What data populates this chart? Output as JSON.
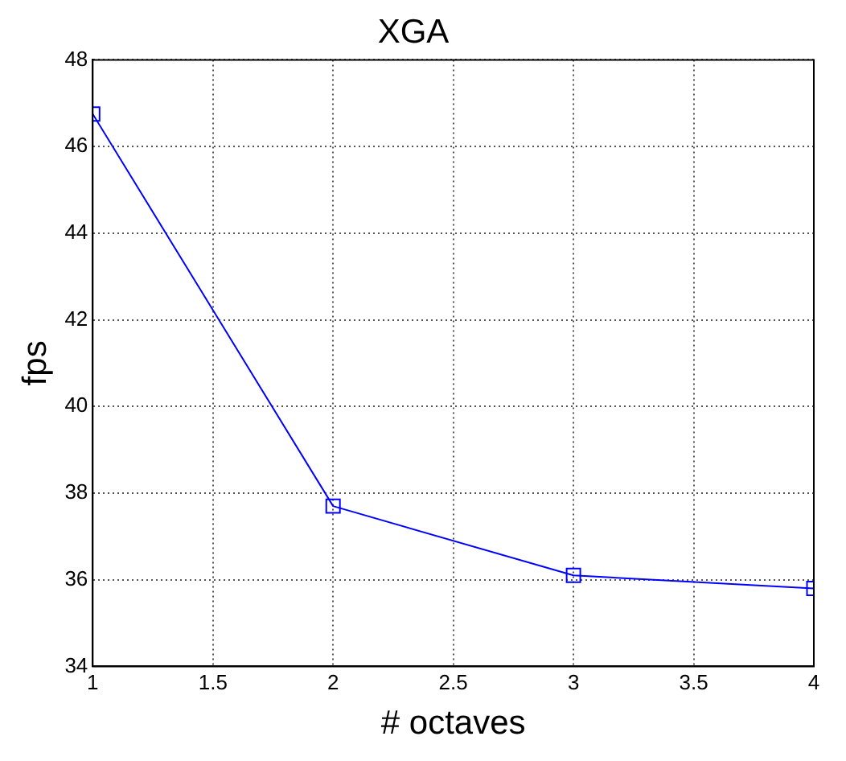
{
  "chart_data": {
    "type": "line",
    "title": "XGA",
    "xlabel": "# octaves",
    "ylabel": "fps",
    "x": [
      1,
      2,
      3,
      4
    ],
    "series": [
      {
        "color": "#0000ff",
        "values": [
          46.75,
          37.7,
          36.1,
          35.8
        ]
      }
    ],
    "xlim": [
      1,
      4
    ],
    "xticks": [
      1,
      1.5,
      2,
      2.5,
      3,
      3.5,
      4
    ],
    "ylim": [
      34,
      48
    ],
    "yticks": [
      34,
      36,
      38,
      40,
      42,
      44,
      46,
      48
    ],
    "grid": true,
    "marker": "square",
    "line_style": "solid",
    "legend": false
  }
}
